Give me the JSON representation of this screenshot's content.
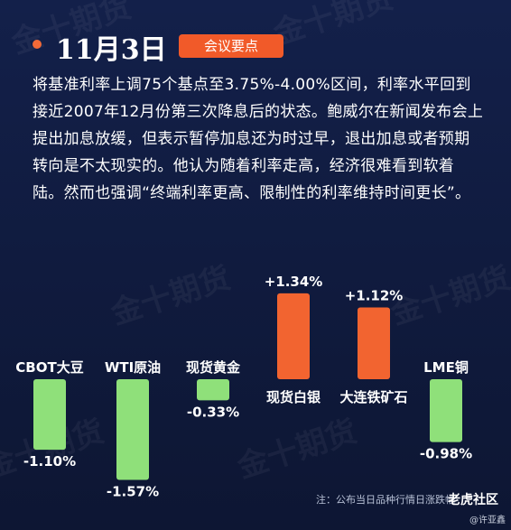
{
  "header": {
    "date": "11月3日",
    "tag": "会议要点"
  },
  "paragraph": "将基准利率上调75个基点至3.75%-4.00%区间，利率水平回到接近2007年12月份第三次降息后的状态。鲍威尔在新闻发布会上提出加息放缓，但表示暂停加息还为时过早，退出加息或者预期转向是不太现实的。他认为随着利率走高，经济很难看到软着陆。然而也强调“终端利率更高、限制性的利率维持时间更长”。",
  "chart_data": {
    "type": "bar",
    "categories": [
      "CBOT大豆",
      "WTI原油",
      "现货黄金",
      "现货白银",
      "大连铁矿石",
      "LME铜"
    ],
    "values": [
      -1.1,
      -1.57,
      -0.33,
      1.34,
      1.12,
      -0.98
    ],
    "value_labels": [
      "-1.10%",
      "-1.57%",
      "-0.33%",
      "+1.34%",
      "+1.12%",
      "-0.98%"
    ],
    "colors": {
      "positive": "#f26430",
      "negative": "#8fe07a"
    }
  },
  "footer": {
    "note": "注：公布当日品种行情日涨跌幅",
    "brand": "老虎社区",
    "author": "@许亚鑫"
  }
}
